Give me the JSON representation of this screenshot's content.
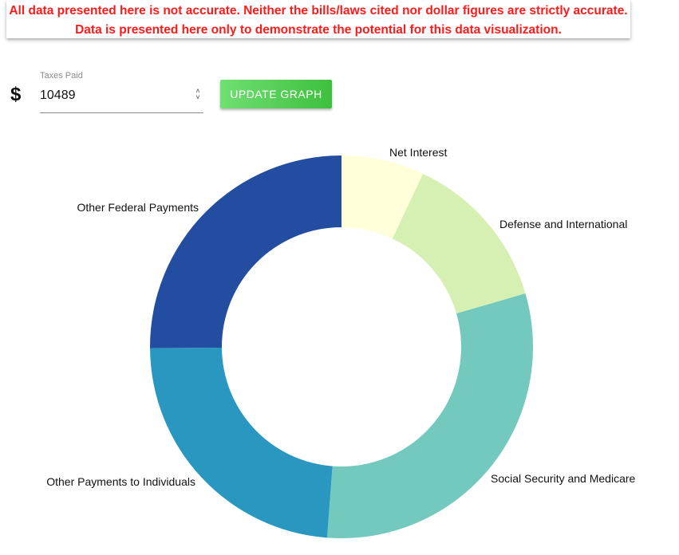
{
  "disclaimer": {
    "line1": "All data presented here is not accurate. Neither the bills/laws cited nor dollar figures are strictly accurate.",
    "line2": "Data is presented here only to demonstrate the potential for this data visualization."
  },
  "taxes_field": {
    "label": "Taxes Paid",
    "currency_symbol": "$",
    "value": "10489"
  },
  "update_button": {
    "label": "UPDATE GRAPH"
  },
  "chart_data": {
    "type": "pie",
    "donut": true,
    "slices": [
      {
        "label": "Net Interest",
        "value": 0.07,
        "color": "#ffffd9"
      },
      {
        "label": "Defense and International",
        "value": 0.135,
        "color": "#d6efb3"
      },
      {
        "label": "Social Security and Medicare",
        "value": 0.307,
        "color": "#73c9bd"
      },
      {
        "label": "Other Payments to Individuals",
        "value": 0.237,
        "color": "#2a97c1"
      },
      {
        "label": "Other Federal Payments",
        "value": 0.251,
        "color": "#234da0"
      }
    ]
  }
}
